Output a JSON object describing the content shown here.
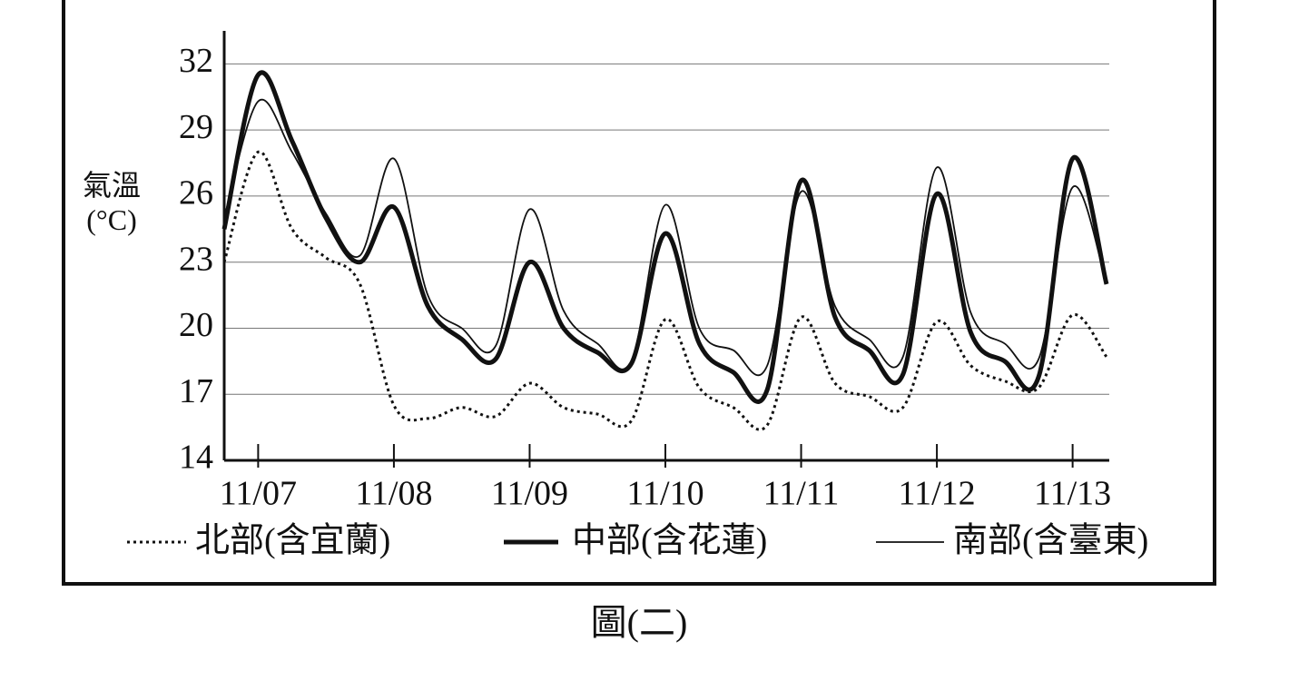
{
  "chart_data": {
    "type": "line",
    "caption": "圖(二)",
    "y_label": "氣溫(°C)",
    "x": [
      -0.25,
      0,
      0.25,
      0.5,
      0.75,
      1,
      1.25,
      1.5,
      1.75,
      2,
      2.25,
      2.5,
      2.75,
      3,
      3.25,
      3.5,
      3.75,
      4,
      4.25,
      4.5,
      4.75,
      5,
      5.25,
      5.5,
      5.75,
      6,
      6.25
    ],
    "xlim": [
      -0.25,
      6.27
    ],
    "xticks": [
      {
        "value": 0,
        "label": "11/07"
      },
      {
        "value": 1,
        "label": "11/08"
      },
      {
        "value": 2,
        "label": "11/09"
      },
      {
        "value": 3,
        "label": "11/10"
      },
      {
        "value": 4,
        "label": "11/11"
      },
      {
        "value": 5,
        "label": "11/12"
      },
      {
        "value": 6,
        "label": "11/13"
      }
    ],
    "ylim": [
      14,
      33.5
    ],
    "yticks": [
      14,
      17,
      20,
      23,
      26,
      29,
      32
    ],
    "grid": true,
    "series": [
      {
        "name": "北部(含宜蘭)",
        "color": "#111",
        "style": "dotted",
        "values": [
          23.0,
          28.0,
          24.5,
          23.2,
          22.0,
          16.5,
          15.9,
          16.4,
          16.0,
          17.5,
          16.4,
          16.1,
          15.8,
          20.4,
          17.3,
          16.4,
          15.6,
          20.5,
          17.5,
          16.9,
          16.4,
          20.3,
          18.3,
          17.6,
          17.3,
          20.6,
          18.7
        ]
      },
      {
        "name": "中部(含花蓮)",
        "color": "#111",
        "style": "thick",
        "values": [
          24.5,
          31.5,
          28.5,
          25.0,
          23.0,
          25.5,
          21.0,
          19.5,
          18.6,
          23.0,
          20.0,
          18.9,
          18.4,
          24.3,
          19.3,
          18.0,
          17.2,
          26.7,
          20.5,
          19.0,
          17.9,
          26.1,
          19.8,
          18.5,
          17.8,
          27.7,
          22.0
        ]
      },
      {
        "name": "南部(含臺東)",
        "color": "#111",
        "style": "thin",
        "values": [
          25.0,
          30.3,
          28.0,
          25.2,
          23.3,
          27.7,
          21.5,
          20.0,
          19.2,
          25.4,
          20.8,
          19.3,
          18.5,
          25.6,
          20.0,
          19.0,
          18.3,
          26.2,
          21.0,
          19.5,
          18.7,
          27.3,
          20.7,
          19.3,
          18.6,
          26.4,
          22.0
        ]
      }
    ]
  }
}
